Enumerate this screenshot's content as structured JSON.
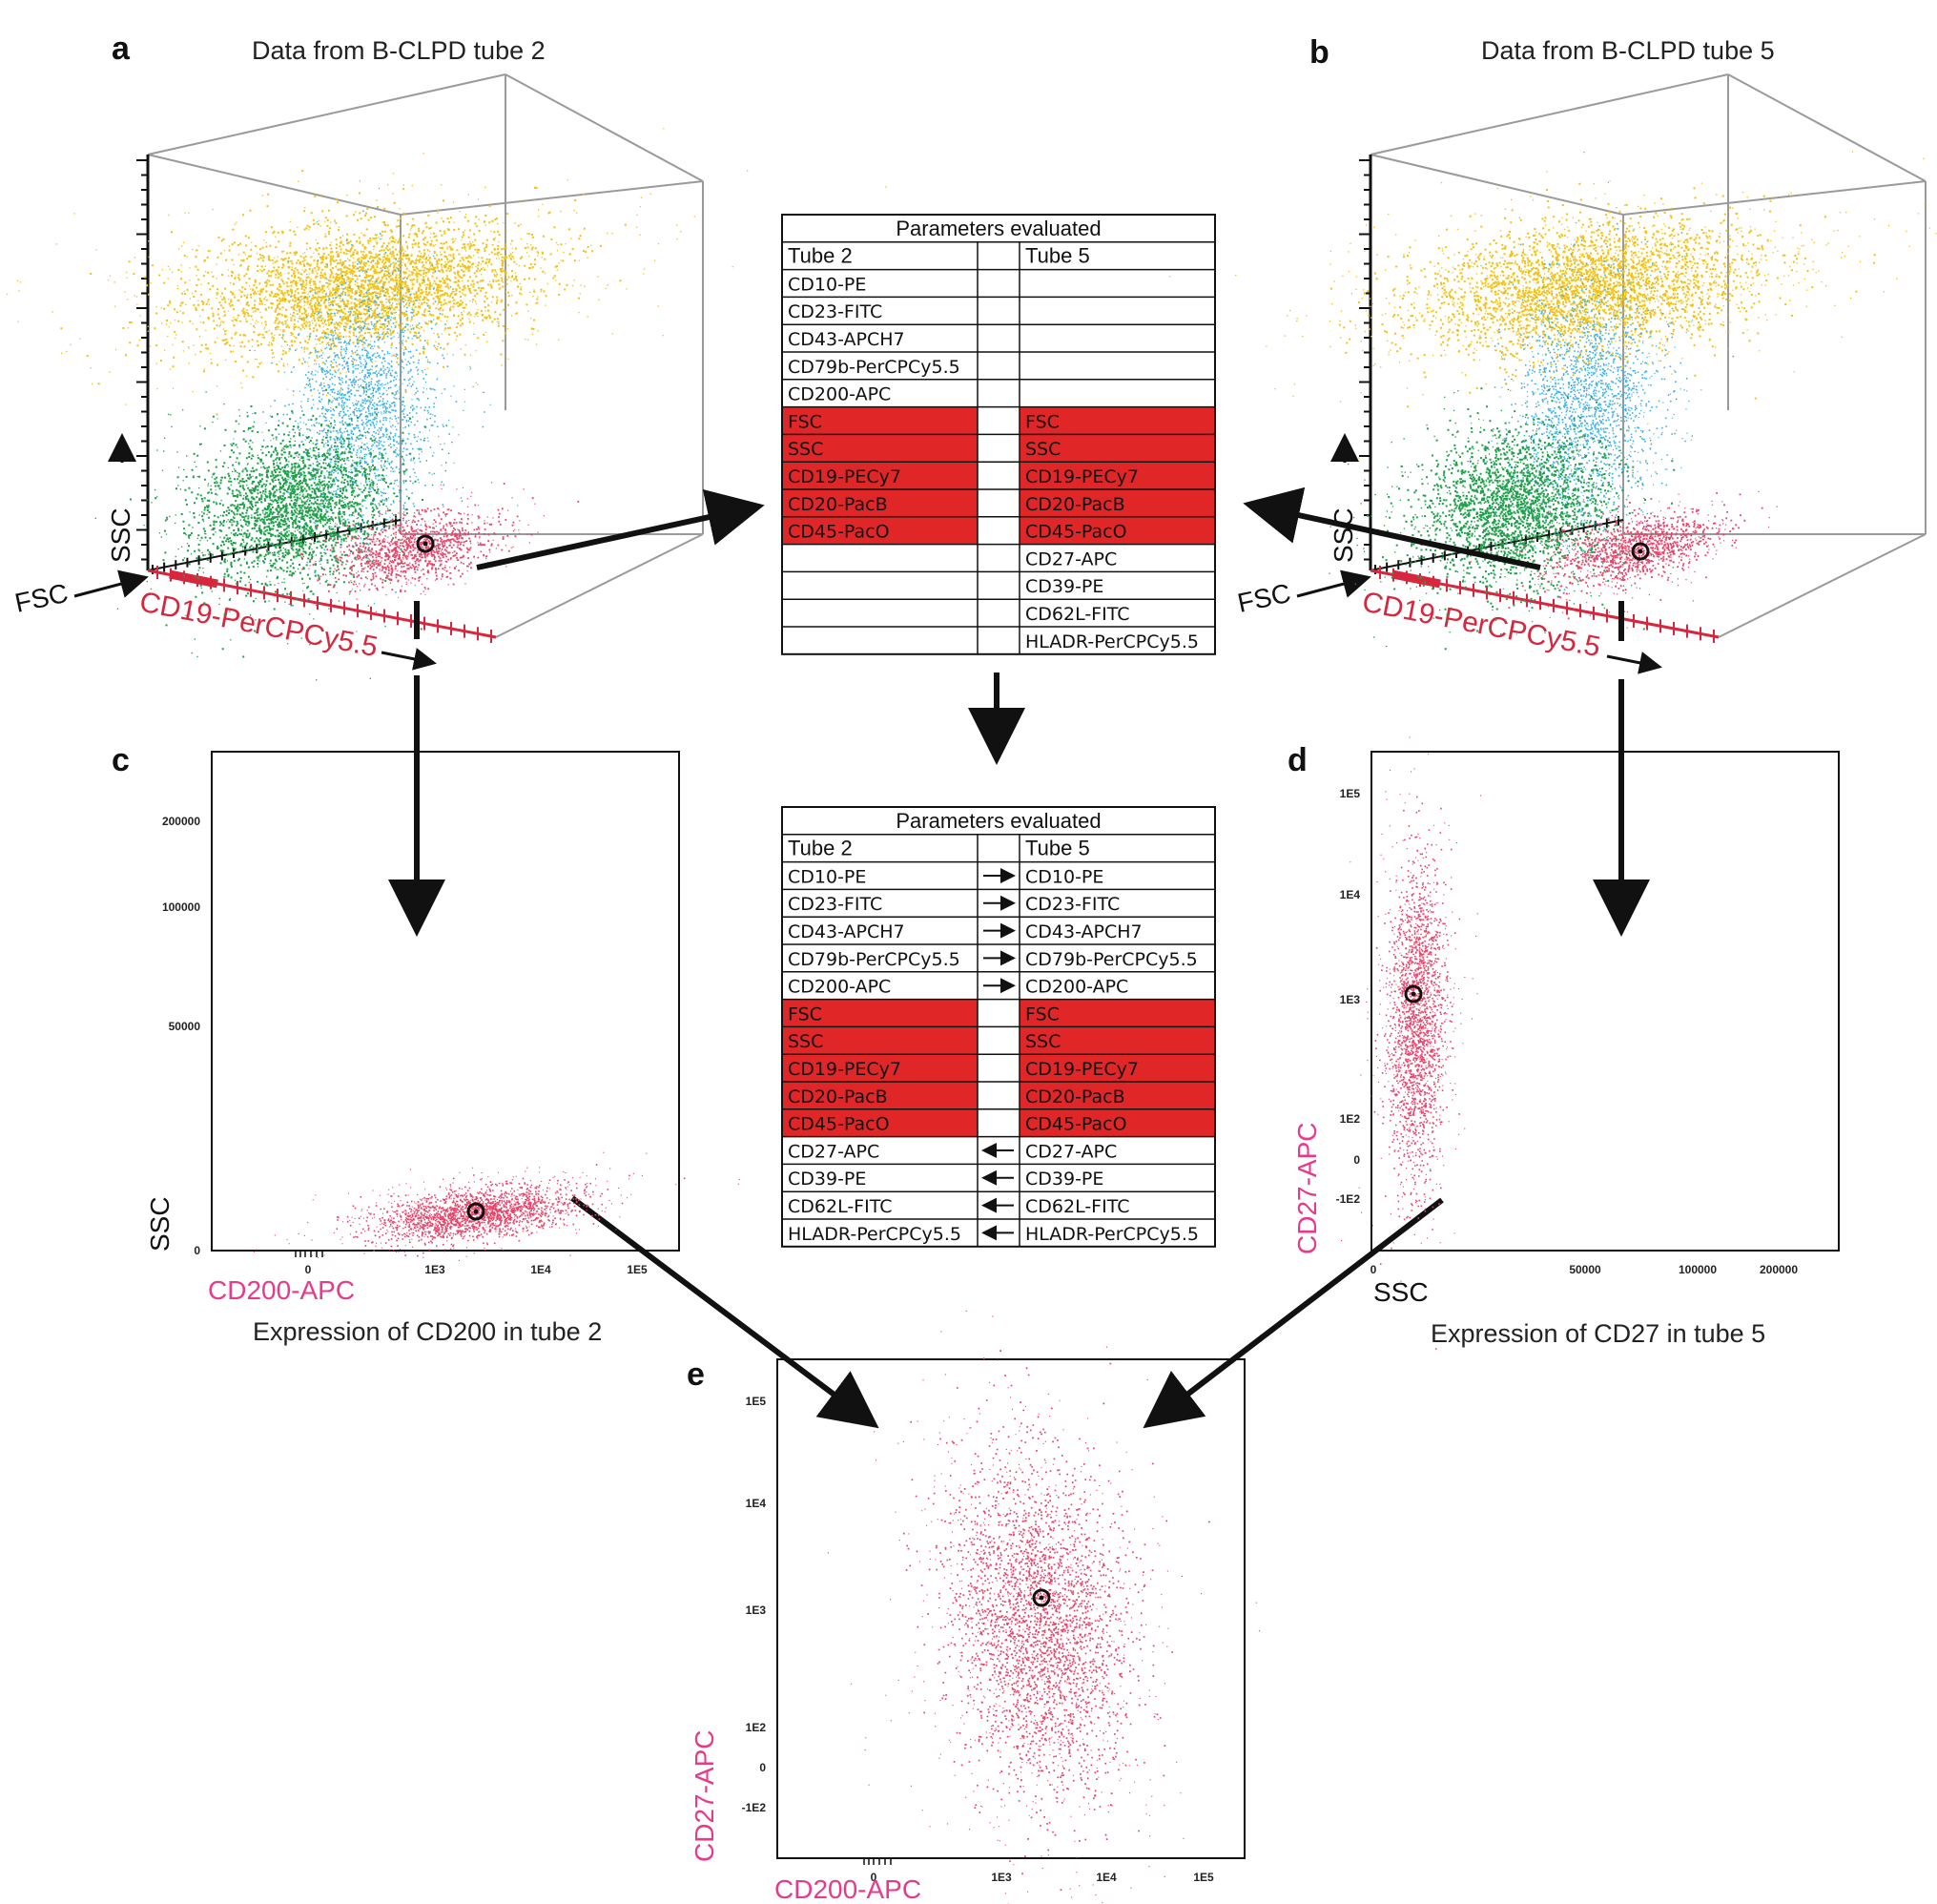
{
  "panels": {
    "a": {
      "letter": "a",
      "title": "Data from B-CLPD tube 2",
      "x_axis": "CD19-PerCPCy5.5",
      "y_axis": "SSC",
      "z_axis": "FSC"
    },
    "b": {
      "letter": "b",
      "title": "Data from B-CLPD tube 5",
      "x_axis": "CD19-PerCPCy5.5",
      "y_axis": "SSC",
      "z_axis": "FSC"
    },
    "c": {
      "letter": "c",
      "caption": "Expression of CD200 in tube 2",
      "x_axis": "CD200-APC",
      "y_axis": "SSC",
      "y_ticks": [
        "200000",
        "100000",
        "50000",
        "0"
      ],
      "x_ticks": [
        "0",
        "1E3",
        "1E4",
        "1E5"
      ]
    },
    "d": {
      "letter": "d",
      "caption": "Expression of CD27 in tube 5",
      "x_axis": "SSC",
      "y_axis": "CD27-APC",
      "y_ticks": [
        "1E5",
        "1E4",
        "1E3",
        "1E2",
        "0",
        "-1E2"
      ],
      "x_ticks": [
        "0",
        "50000",
        "100000",
        "200000"
      ]
    },
    "e": {
      "letter": "e",
      "x_axis": "CD200-APC",
      "y_axis": "CD27-APC",
      "y_ticks": [
        "1E5",
        "1E4",
        "1E3",
        "1E2",
        "0",
        "-1E2"
      ],
      "x_ticks": [
        "0",
        "1E3",
        "1E4",
        "1E5"
      ]
    }
  },
  "table_top": {
    "title": "Parameters evaluated",
    "col1": "Tube 2",
    "col2": "Tube 5",
    "rows": [
      {
        "t2": "CD10-PE",
        "t5": "",
        "arrow": "",
        "red": false
      },
      {
        "t2": "CD23-FITC",
        "t5": "",
        "arrow": "",
        "red": false
      },
      {
        "t2": "CD43-APCH7",
        "t5": "",
        "arrow": "",
        "red": false
      },
      {
        "t2": "CD79b-PerCPCy5.5",
        "t5": "",
        "arrow": "",
        "red": false
      },
      {
        "t2": "CD200-APC",
        "t5": "",
        "arrow": "",
        "red": false
      },
      {
        "t2": "FSC",
        "t5": "FSC",
        "arrow": "",
        "red": true
      },
      {
        "t2": "SSC",
        "t5": "SSC",
        "arrow": "",
        "red": true
      },
      {
        "t2": "CD19-PECy7",
        "t5": "CD19-PECy7",
        "arrow": "",
        "red": true
      },
      {
        "t2": "CD20-PacB",
        "t5": "CD20-PacB",
        "arrow": "",
        "red": true
      },
      {
        "t2": "CD45-PacO",
        "t5": "CD45-PacO",
        "arrow": "",
        "red": true
      },
      {
        "t2": "",
        "t5": "CD27-APC",
        "arrow": "",
        "red": false
      },
      {
        "t2": "",
        "t5": "CD39-PE",
        "arrow": "",
        "red": false
      },
      {
        "t2": "",
        "t5": "CD62L-FITC",
        "arrow": "",
        "red": false
      },
      {
        "t2": "",
        "t5": "HLADR-PerCPCy5.5",
        "arrow": "",
        "red": false
      }
    ]
  },
  "table_bottom": {
    "title": "Parameters evaluated",
    "col1": "Tube 2",
    "col2": "Tube 5",
    "rows": [
      {
        "t2": "CD10-PE",
        "t5": "CD10-PE",
        "arrow": "right",
        "red": false
      },
      {
        "t2": "CD23-FITC",
        "t5": "CD23-FITC",
        "arrow": "right",
        "red": false
      },
      {
        "t2": "CD43-APCH7",
        "t5": "CD43-APCH7",
        "arrow": "right",
        "red": false
      },
      {
        "t2": "CD79b-PerCPCy5.5",
        "t5": "CD79b-PerCPCy5.5",
        "arrow": "right",
        "red": false
      },
      {
        "t2": "CD200-APC",
        "t5": "CD200-APC",
        "arrow": "right",
        "red": false
      },
      {
        "t2": "FSC",
        "t5": "FSC",
        "arrow": "",
        "red": true
      },
      {
        "t2": "SSC",
        "t5": "SSC",
        "arrow": "",
        "red": true
      },
      {
        "t2": "CD19-PECy7",
        "t5": "CD19-PECy7",
        "arrow": "",
        "red": true
      },
      {
        "t2": "CD20-PacB",
        "t5": "CD20-PacB",
        "arrow": "",
        "red": true
      },
      {
        "t2": "CD45-PacO",
        "t5": "CD45-PacO",
        "arrow": "",
        "red": true
      },
      {
        "t2": "CD27-APC",
        "t5": "CD27-APC",
        "arrow": "left",
        "red": false
      },
      {
        "t2": "CD39-PE",
        "t5": "CD39-PE",
        "arrow": "left",
        "red": false
      },
      {
        "t2": "CD62L-FITC",
        "t5": "CD62L-FITC",
        "arrow": "left",
        "red": false
      },
      {
        "t2": "HLADR-PerCPCy5.5",
        "t5": "HLADR-PerCPCy5.5",
        "arrow": "left",
        "red": false
      }
    ]
  },
  "colors": {
    "granulocytes": "#f5c211",
    "monocytes": "#3fb3e6",
    "lymphocytes": "#1fa14a",
    "bcells": "#e8456b",
    "highlight_red": "#e02626",
    "axis_red": "#d7263d",
    "axis_pink": "#e8398a"
  }
}
